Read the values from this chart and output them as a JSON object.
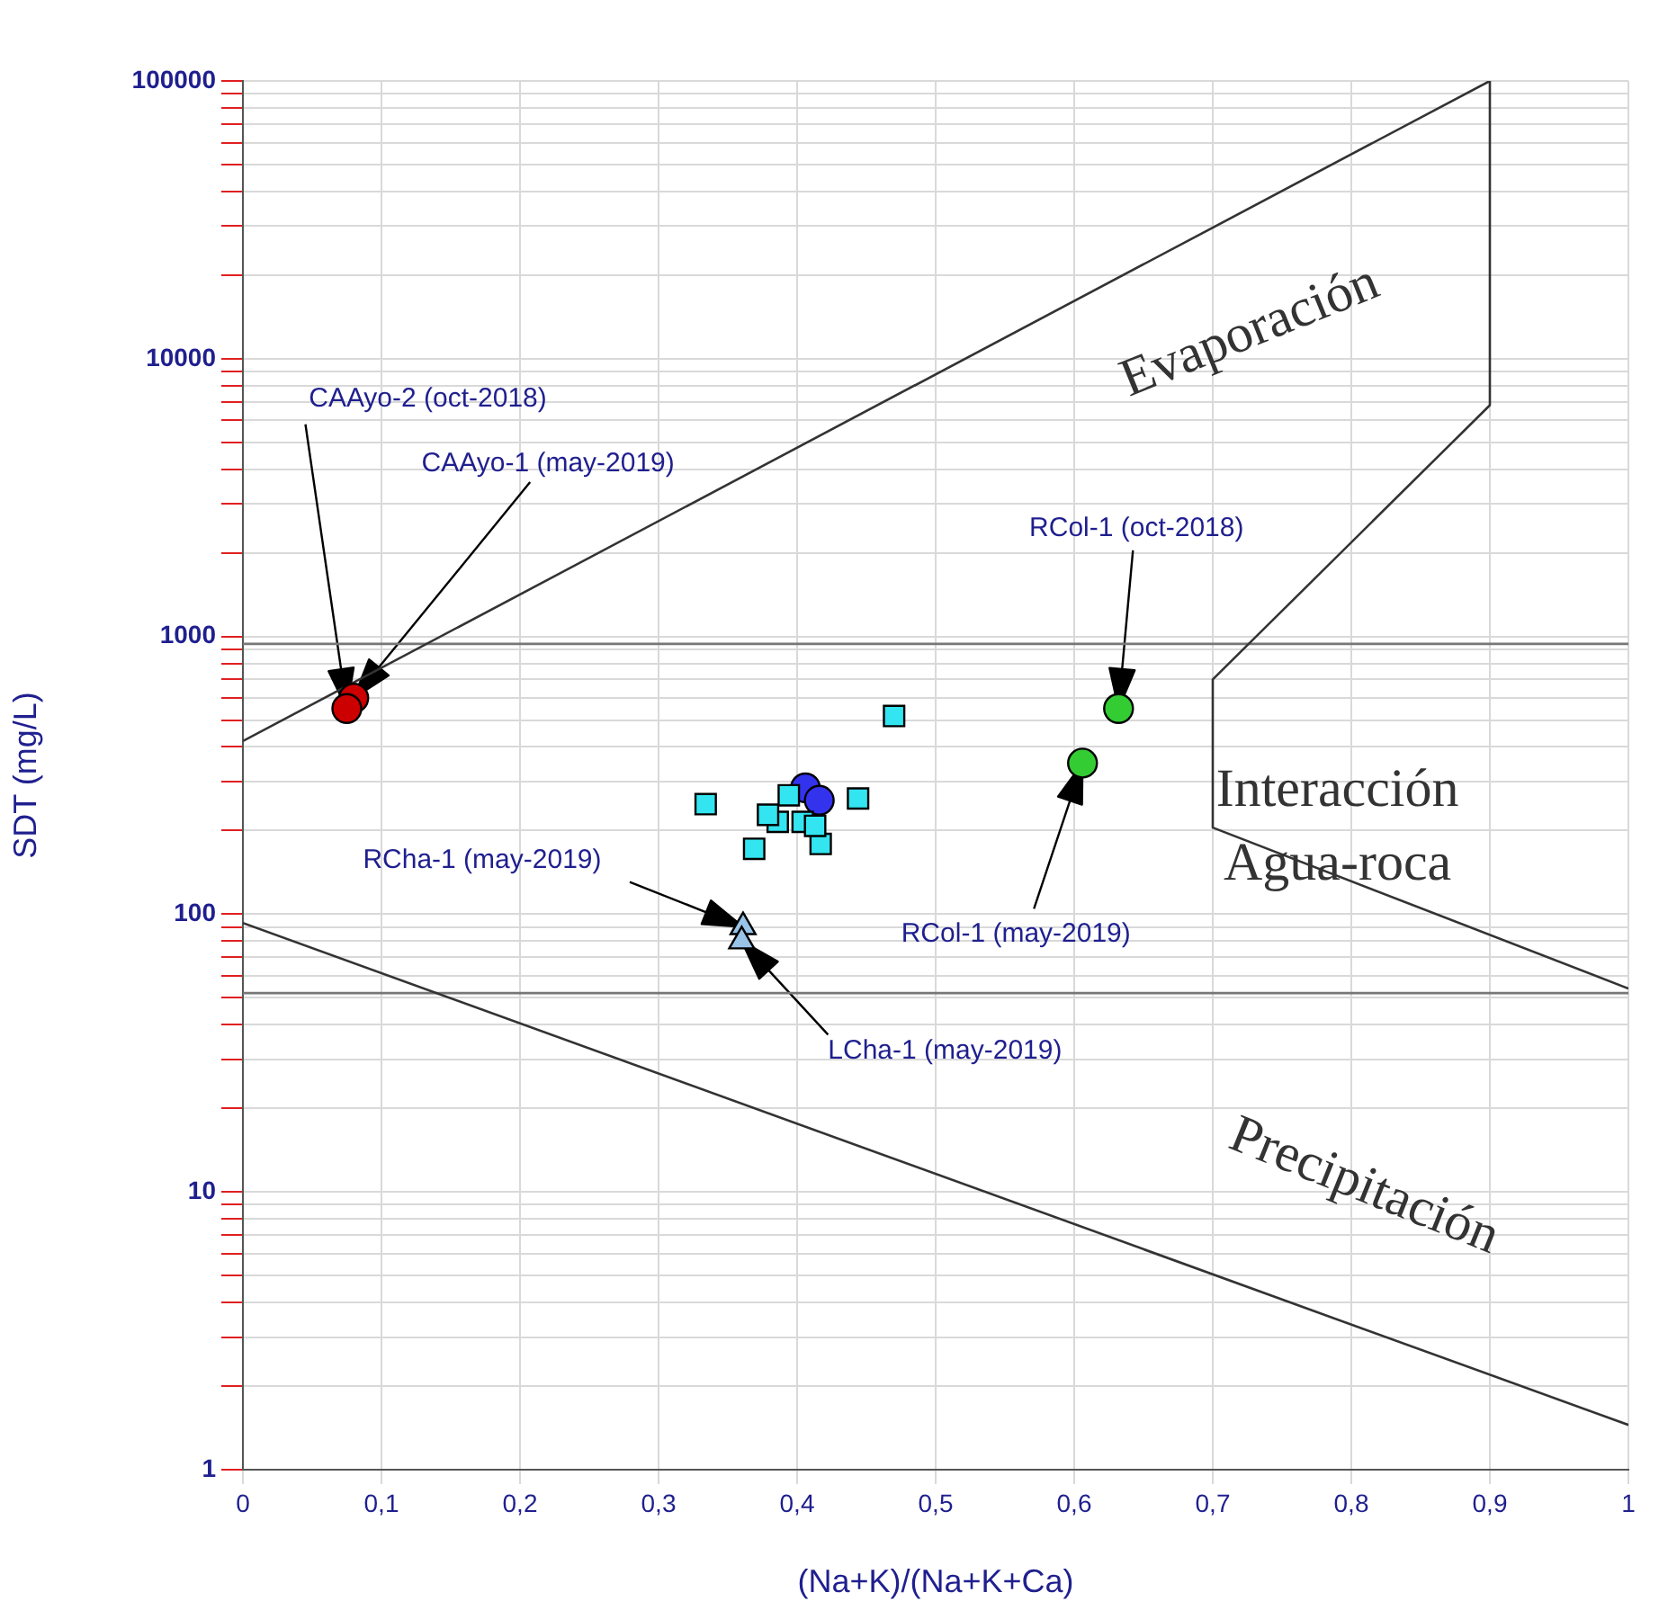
{
  "chart_data": {
    "type": "scatter",
    "xlabel": "(Na+K)/(Na+K+Ca)",
    "ylabel": "SDT (mg/L)",
    "log": "y",
    "grid": true,
    "legend": false,
    "xlim": [
      0,
      1
    ],
    "ylim": [
      1,
      100000
    ],
    "xticks": [
      0,
      {
        "value": 0.1,
        "label": "0,1"
      },
      {
        "value": 0.2,
        "label": "0,2"
      },
      {
        "value": 0.3,
        "label": "0,3"
      },
      {
        "value": 0.4,
        "label": "0,4"
      },
      {
        "value": 0.5,
        "label": "0,5"
      },
      {
        "value": 0.6,
        "label": "0,6"
      },
      {
        "value": 0.7,
        "label": "0,7"
      },
      {
        "value": 0.8,
        "label": "0,8"
      },
      {
        "value": 0.9,
        "label": "0,9"
      },
      1
    ],
    "yticks": [
      1,
      {
        "value": 2,
        "label": null
      },
      {
        "value": 3,
        "label": null
      },
      {
        "value": 4,
        "label": null
      },
      {
        "value": 5,
        "label": null
      },
      {
        "value": 6,
        "label": null
      },
      {
        "value": 7,
        "label": null
      },
      {
        "value": 8,
        "label": null
      },
      {
        "value": 9,
        "label": null
      },
      10,
      {
        "value": 20,
        "label": null
      },
      {
        "value": 30,
        "label": null
      },
      {
        "value": 40,
        "label": null
      },
      {
        "value": 50,
        "label": null
      },
      {
        "value": 60,
        "label": null
      },
      {
        "value": 70,
        "label": null
      },
      {
        "value": 80,
        "label": null
      },
      {
        "value": 90,
        "label": null
      },
      100,
      {
        "value": 200,
        "label": null
      },
      {
        "value": 300,
        "label": null
      },
      {
        "value": 400,
        "label": null
      },
      {
        "value": 500,
        "label": null
      },
      {
        "value": 600,
        "label": null
      },
      {
        "value": 700,
        "label": null
      },
      {
        "value": 800,
        "label": null
      },
      {
        "value": 900,
        "label": null
      },
      1000,
      {
        "value": 2000,
        "label": null
      },
      {
        "value": 3000,
        "label": null
      },
      {
        "value": 4000,
        "label": null
      },
      {
        "value": 5000,
        "label": null
      },
      {
        "value": 6000,
        "label": null
      },
      {
        "value": 7000,
        "label": null
      },
      {
        "value": 8000,
        "label": null
      },
      {
        "value": 9000,
        "label": null
      },
      10000,
      {
        "value": 20000,
        "label": null
      },
      {
        "value": 30000,
        "label": null
      },
      {
        "value": 40000,
        "label": null
      },
      {
        "value": 50000,
        "label": null
      },
      {
        "value": 60000,
        "label": null
      },
      {
        "value": 70000,
        "label": null
      },
      {
        "value": 80000,
        "label": null
      },
      {
        "value": 90000,
        "label": null
      },
      100000
    ],
    "series": [
      {
        "type": "line",
        "color": "#333333",
        "marker": "none",
        "x": [
          0,
          0.9,
          0.9,
          0.7,
          0.7,
          1
        ],
        "values": [
          420,
          100000,
          6800,
          700,
          205,
          54
        ]
      },
      {
        "type": "line",
        "color": "#333333",
        "marker": "none",
        "x": [
          0,
          1
        ],
        "values": [
          93,
          1.45
        ]
      },
      {
        "type": "line",
        "color": "#777777",
        "marker": "none",
        "x": [
          0,
          1
        ],
        "values": [
          940,
          940
        ]
      },
      {
        "type": "line",
        "color": "#777777",
        "marker": "none",
        "x": [
          0,
          1
        ],
        "values": [
          52,
          52
        ]
      },
      {
        "color": "#33e5f0",
        "marker": "square",
        "x": [
          0.47,
          0.334,
          0.444,
          0.369,
          0.417,
          0.386,
          0.404,
          0.379,
          0.394,
          0.413
        ],
        "values": [
          517,
          249,
          261,
          172,
          179,
          215,
          215,
          228,
          268,
          208
        ]
      },
      {
        "color": "#3333ee",
        "marker": "circle",
        "x": [
          0.406,
          0.416
        ],
        "values": [
          285,
          257
        ]
      },
      {
        "color": "#cc0000",
        "marker": "circle",
        "x": [
          0.08,
          0.075
        ],
        "values": [
          600,
          550
        ]
      },
      {
        "color": "#33cc33",
        "marker": "circle",
        "x": [
          0.632,
          0.606
        ],
        "values": [
          550,
          350
        ]
      },
      {
        "color": "#99c4e8",
        "marker": "triangle",
        "x": [
          0.361,
          0.36
        ],
        "values": [
          90,
          80
        ]
      }
    ],
    "annotations": [
      "CAAyo-2 (oct-2018)",
      "CAAyo-1 (may-2019)",
      "RCol-1 (oct-2018)",
      "RCol-1 (may-2019)",
      "RCha-1 (may-2019)",
      "LCha-1 (may-2019)",
      "Evaporación",
      "Interacción",
      "Agua-roca",
      "Precipitación"
    ]
  }
}
